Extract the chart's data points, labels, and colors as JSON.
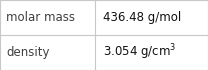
{
  "rows": [
    {
      "label": "molar mass",
      "value": "436.48 g/mol",
      "superscript": null
    },
    {
      "label": "density",
      "value": "3.054 g/cm",
      "superscript": "3"
    }
  ],
  "background_color": "#f8f8f8",
  "cell_bg_color": "#ffffff",
  "border_color": "#c8c8c8",
  "label_color": "#404040",
  "value_color": "#111111",
  "font_size": 8.5,
  "col_split": 0.455
}
